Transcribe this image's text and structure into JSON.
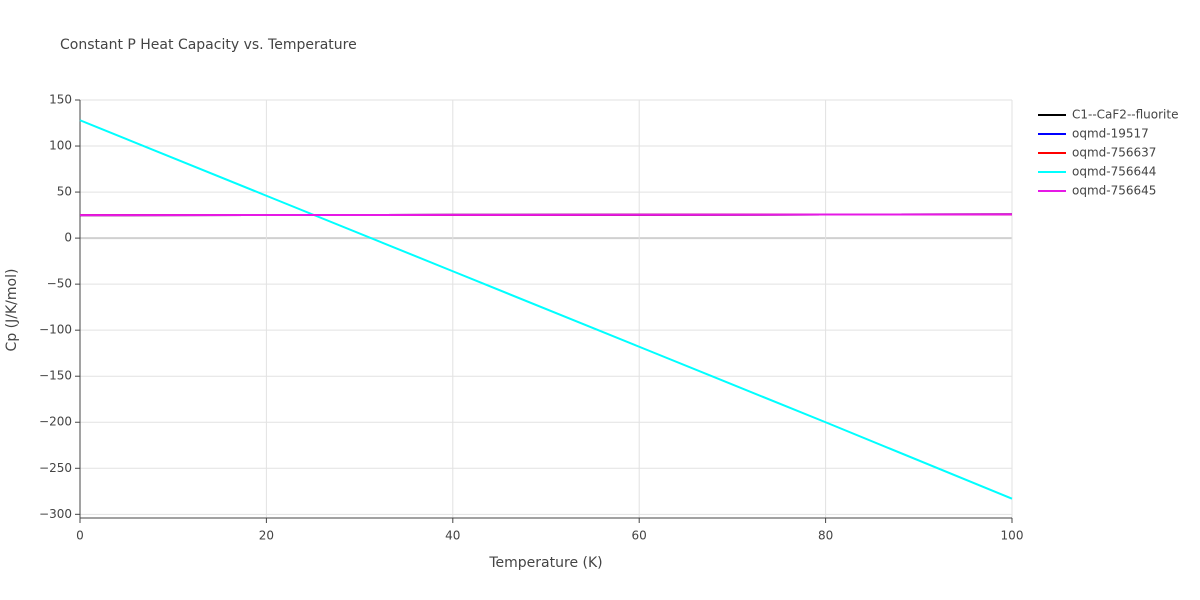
{
  "chart_data": {
    "type": "line",
    "title": "Constant P Heat Capacity vs. Temperature",
    "x_label": "Temperature (K)",
    "y_label": "Cp (J/K/mol)",
    "x": [
      0,
      20,
      40,
      60,
      80,
      100
    ],
    "series": [
      {
        "name": "C1--CaF2--fluorite",
        "color": "#000000",
        "values": [
          25.0,
          25.1,
          25.2,
          25.4,
          25.6,
          25.8
        ]
      },
      {
        "name": "oqmd-19517",
        "color": "#0000ff",
        "values": [
          25.0,
          25.1,
          25.2,
          25.4,
          25.6,
          25.8
        ]
      },
      {
        "name": "oqmd-756637",
        "color": "#ff0000",
        "values": [
          25.0,
          25.1,
          25.2,
          25.4,
          25.6,
          25.8
        ]
      },
      {
        "name": "oqmd-756644",
        "color": "#00ffff",
        "values": [
          128,
          46,
          -36,
          -118,
          -200,
          -283
        ]
      },
      {
        "name": "oqmd-756645",
        "color": "#e619e6",
        "values": [
          25.0,
          25.1,
          25.2,
          25.4,
          25.6,
          25.8
        ]
      }
    ],
    "xlim": [
      0,
      100
    ],
    "xticks": [
      0,
      20,
      40,
      60,
      80,
      100
    ],
    "ylim": [
      -304,
      150
    ],
    "yticks": [
      {
        "value": -300,
        "label": "−300"
      },
      {
        "value": -250,
        "label": "−250"
      },
      {
        "value": -200,
        "label": "−200"
      },
      {
        "value": -150,
        "label": "−150"
      },
      {
        "value": -100,
        "label": "−100"
      },
      {
        "value": -50,
        "label": "−50"
      },
      0,
      50,
      100,
      150
    ],
    "grid": true,
    "legend": "right"
  }
}
